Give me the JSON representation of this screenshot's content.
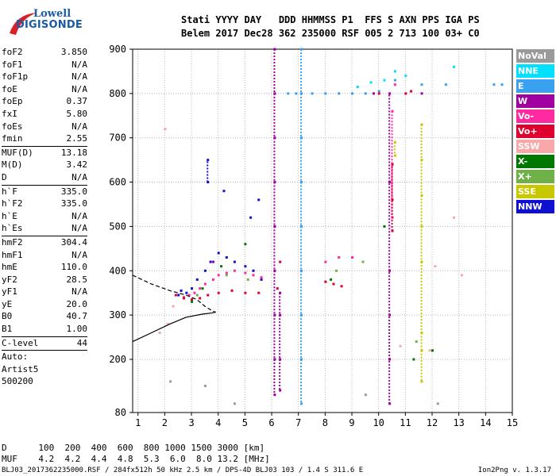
{
  "logo": {
    "line1": "Lowell",
    "line2": "DIGISONDE"
  },
  "header": {
    "line1": "Stati YYYY DAY   DDD HHMMSS P1  FFS S AXN PPS IGA PS",
    "line2": "Belem 2017 Dec28 362 235000 RSF 005 2 713 100 03+ C0"
  },
  "params": [
    {
      "label": "foF2",
      "value": "3.850"
    },
    {
      "label": "foF1",
      "value": "N/A"
    },
    {
      "label": "foF1p",
      "value": "N/A"
    },
    {
      "label": "foE",
      "value": "N/A"
    },
    {
      "label": "foEp",
      "value": "0.37"
    },
    {
      "label": "fxI",
      "value": "5.80"
    },
    {
      "label": "foEs",
      "value": "N/A"
    },
    {
      "label": "fmin",
      "value": "2.55"
    },
    {
      "label": "MUF(D)",
      "value": "13.18",
      "sep": true
    },
    {
      "label": "M(D)",
      "value": "3.42"
    },
    {
      "label": "D",
      "value": "N/A"
    },
    {
      "label": "h`F",
      "value": "335.0",
      "sep": true
    },
    {
      "label": "h`F2",
      "value": "335.0"
    },
    {
      "label": "h`E",
      "value": "N/A"
    },
    {
      "label": "h`Es",
      "value": "N/A"
    },
    {
      "label": "hmF2",
      "value": "304.4",
      "sep": true
    },
    {
      "label": "hmF1",
      "value": "N/A"
    },
    {
      "label": "hmE",
      "value": "110.0"
    },
    {
      "label": "yF2",
      "value": "28.5"
    },
    {
      "label": "yF1",
      "value": "N/A"
    },
    {
      "label": "yE",
      "value": "20.0"
    },
    {
      "label": "B0",
      "value": "40.7"
    },
    {
      "label": "B1",
      "value": "1.00"
    },
    {
      "label": "C-level",
      "value": "44",
      "sep": true
    }
  ],
  "auto": [
    "Auto:",
    "Artist5",
    "500200"
  ],
  "legend": [
    {
      "label": "NoVal",
      "color": "#9a9a9a"
    },
    {
      "label": "NNE",
      "color": "#00e0ff"
    },
    {
      "label": "E",
      "color": "#3aa0f0"
    },
    {
      "label": "W",
      "color": "#a000a0"
    },
    {
      "label": "Vo-",
      "color": "#ff2aa0"
    },
    {
      "label": "Vo+",
      "color": "#e00030"
    },
    {
      "label": "SSW",
      "color": "#f8a8a8"
    },
    {
      "label": "X-",
      "color": "#007800"
    },
    {
      "label": "X+",
      "color": "#70b048"
    },
    {
      "label": "SSE",
      "color": "#c8c800"
    },
    {
      "label": "NNW",
      "color": "#1010d0"
    }
  ],
  "muf_table": {
    "row1": "D      100  200  400  600  800 1000 1500 3000 [km]",
    "row2": "MUF    4.2  4.2  4.4  4.8  5.3  6.0  8.0 13.2 [MHz]"
  },
  "footer_left": "BLJ03_2017362235000.RSF / 284fx512h 50 kHz 2.5 km / DPS-4D BLJ03 103 / 1.4 S 311.6 E",
  "footer_right": "Ion2Png v. 1.3.17",
  "chart_data": {
    "type": "scatter",
    "xlim": [
      0.8,
      15
    ],
    "ylim": [
      80,
      900
    ],
    "xticks": [
      "1",
      "2",
      "3",
      "4",
      "5",
      "6",
      "7",
      "8",
      "9",
      "10",
      "11",
      "12",
      "13",
      "14",
      "15"
    ],
    "yticks": [
      "80",
      "200",
      "300",
      "400",
      "500",
      "600",
      "700",
      "800",
      "900"
    ],
    "grid": true,
    "traces": [
      {
        "color": "#1010d0",
        "points": [
          [
            2.5,
            345
          ],
          [
            2.8,
            350
          ],
          [
            3.0,
            360
          ],
          [
            3.2,
            380
          ],
          [
            3.5,
            400
          ],
          [
            3.7,
            420
          ],
          [
            4.0,
            440
          ],
          [
            4.3,
            430
          ],
          [
            4.6,
            420
          ],
          [
            5.0,
            410
          ],
          [
            5.3,
            400
          ],
          [
            3.6,
            600
          ],
          [
            3.6,
            650
          ],
          [
            4.2,
            580
          ],
          [
            5.2,
            520
          ],
          [
            5.5,
            560
          ],
          [
            5.6,
            380
          ],
          [
            2.6,
            355
          ]
        ]
      },
      {
        "color": "#ff2aa0",
        "points": [
          [
            2.7,
            340
          ],
          [
            2.9,
            345
          ],
          [
            3.1,
            350
          ],
          [
            3.3,
            360
          ],
          [
            3.5,
            370
          ],
          [
            3.8,
            380
          ],
          [
            4.0,
            390
          ],
          [
            4.3,
            395
          ],
          [
            4.6,
            400
          ],
          [
            5.0,
            395
          ],
          [
            5.3,
            390
          ],
          [
            5.6,
            385
          ],
          [
            8.0,
            420
          ],
          [
            8.5,
            430
          ],
          [
            9.0,
            430
          ],
          [
            10.5,
            520
          ],
          [
            10.5,
            760
          ],
          [
            10.6,
            820
          ]
        ]
      },
      {
        "color": "#e00030",
        "points": [
          [
            2.4,
            345
          ],
          [
            2.7,
            338
          ],
          [
            3.0,
            335
          ],
          [
            3.3,
            338
          ],
          [
            3.6,
            345
          ],
          [
            4.0,
            350
          ],
          [
            4.5,
            355
          ],
          [
            5.0,
            350
          ],
          [
            5.5,
            350
          ],
          [
            8.0,
            375
          ],
          [
            8.3,
            370
          ],
          [
            8.6,
            365
          ],
          [
            10.5,
            490
          ],
          [
            10.5,
            560
          ],
          [
            10.5,
            640
          ],
          [
            10.0,
            800
          ],
          [
            11.0,
            800
          ],
          [
            11.2,
            805
          ],
          [
            6.2,
            360
          ],
          [
            6.3,
            420
          ]
        ]
      },
      {
        "color": "#a000a0",
        "points": [
          [
            6.1,
            900
          ],
          [
            6.1,
            800
          ],
          [
            6.1,
            700
          ],
          [
            6.1,
            600
          ],
          [
            6.1,
            500
          ],
          [
            6.1,
            400
          ],
          [
            6.1,
            300
          ],
          [
            6.1,
            200
          ],
          [
            6.1,
            120
          ],
          [
            6.3,
            350
          ],
          [
            6.3,
            300
          ],
          [
            6.3,
            200
          ],
          [
            6.3,
            130
          ],
          [
            10.4,
            100
          ],
          [
            10.4,
            200
          ],
          [
            10.4,
            300
          ],
          [
            10.4,
            400
          ],
          [
            10.4,
            600
          ],
          [
            10.4,
            800
          ],
          [
            11.6,
            800
          ],
          [
            9.8,
            800
          ],
          [
            3.8,
            420
          ]
        ]
      },
      {
        "color": "#3aa0f0",
        "points": [
          [
            7.1,
            900
          ],
          [
            7.1,
            800
          ],
          [
            7.1,
            700
          ],
          [
            7.1,
            600
          ],
          [
            7.1,
            500
          ],
          [
            7.1,
            400
          ],
          [
            7.1,
            300
          ],
          [
            7.1,
            200
          ],
          [
            7.1,
            100
          ],
          [
            6.6,
            800
          ],
          [
            6.9,
            800
          ],
          [
            7.5,
            800
          ],
          [
            8.0,
            800
          ],
          [
            8.5,
            800
          ],
          [
            9.0,
            800
          ],
          [
            9.5,
            800
          ],
          [
            10.0,
            805
          ],
          [
            10.6,
            830
          ],
          [
            11.6,
            820
          ],
          [
            12.5,
            820
          ],
          [
            14.3,
            820
          ],
          [
            14.6,
            820
          ]
        ]
      },
      {
        "color": "#00e0ff",
        "points": [
          [
            9.2,
            815
          ],
          [
            9.7,
            825
          ],
          [
            10.2,
            830
          ],
          [
            10.6,
            850
          ],
          [
            11.0,
            840
          ],
          [
            12.8,
            860
          ]
        ]
      },
      {
        "color": "#c8c800",
        "points": [
          [
            11.6,
            730
          ],
          [
            11.6,
            650
          ],
          [
            11.6,
            570
          ],
          [
            11.6,
            500
          ],
          [
            11.6,
            420
          ],
          [
            11.6,
            260
          ],
          [
            11.6,
            220
          ],
          [
            11.6,
            150
          ],
          [
            10.6,
            690
          ],
          [
            10.6,
            660
          ]
        ]
      },
      {
        "color": "#007800",
        "points": [
          [
            3.0,
            330
          ],
          [
            3.4,
            360
          ],
          [
            4.1,
            410
          ],
          [
            5.0,
            460
          ],
          [
            8.2,
            380
          ],
          [
            10.2,
            500
          ],
          [
            12.0,
            220
          ],
          [
            11.3,
            200
          ]
        ]
      },
      {
        "color": "#70b048",
        "points": [
          [
            3.2,
            345
          ],
          [
            4.3,
            390
          ],
          [
            5.1,
            380
          ],
          [
            8.4,
            400
          ],
          [
            9.4,
            420
          ],
          [
            11.4,
            240
          ]
        ]
      },
      {
        "color": "#f8a8a8",
        "points": [
          [
            1.8,
            260
          ],
          [
            2.1,
            280
          ],
          [
            2.3,
            320
          ],
          [
            2.0,
            720
          ],
          [
            10.8,
            230
          ],
          [
            11.9,
            220
          ],
          [
            12.8,
            520
          ],
          [
            12.1,
            410
          ],
          [
            13.1,
            390
          ]
        ]
      },
      {
        "color": "#9a9a9a",
        "points": [
          [
            2.2,
            150
          ],
          [
            3.5,
            140
          ],
          [
            4.6,
            100
          ],
          [
            9.5,
            120
          ],
          [
            12.2,
            100
          ]
        ]
      }
    ],
    "lines": [
      {
        "color": "#000000",
        "style": "solid",
        "points": [
          [
            0.8,
            240
          ],
          [
            1.5,
            260
          ],
          [
            2.2,
            280
          ],
          [
            2.8,
            295
          ],
          [
            3.4,
            302
          ],
          [
            3.8,
            305
          ],
          [
            3.9,
            308
          ]
        ]
      },
      {
        "color": "#000000",
        "style": "dashed",
        "points": [
          [
            0.8,
            390
          ],
          [
            1.5,
            370
          ],
          [
            2.2,
            355
          ],
          [
            2.8,
            345
          ],
          [
            3.2,
            335
          ],
          [
            3.5,
            320
          ],
          [
            3.9,
            305
          ]
        ]
      }
    ]
  }
}
